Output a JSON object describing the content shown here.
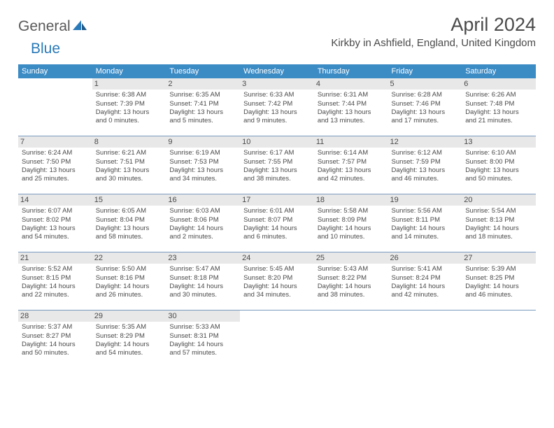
{
  "logo": {
    "part1": "General",
    "part2": "Blue"
  },
  "title": "April 2024",
  "location": "Kirkby in Ashfield, England, United Kingdom",
  "colors": {
    "header_bg": "#3b8bc5",
    "header_fg": "#ffffff",
    "cell_border": "#7a9abf",
    "daynum_bg": "#e8e8e8",
    "text": "#4a4a4a",
    "logo_blue": "#2a7ab9"
  },
  "day_names": [
    "Sunday",
    "Monday",
    "Tuesday",
    "Wednesday",
    "Thursday",
    "Friday",
    "Saturday"
  ],
  "weeks": [
    [
      null,
      {
        "n": "1",
        "sr": "Sunrise: 6:38 AM",
        "ss": "Sunset: 7:39 PM",
        "d1": "Daylight: 13 hours",
        "d2": "and 0 minutes."
      },
      {
        "n": "2",
        "sr": "Sunrise: 6:35 AM",
        "ss": "Sunset: 7:41 PM",
        "d1": "Daylight: 13 hours",
        "d2": "and 5 minutes."
      },
      {
        "n": "3",
        "sr": "Sunrise: 6:33 AM",
        "ss": "Sunset: 7:42 PM",
        "d1": "Daylight: 13 hours",
        "d2": "and 9 minutes."
      },
      {
        "n": "4",
        "sr": "Sunrise: 6:31 AM",
        "ss": "Sunset: 7:44 PM",
        "d1": "Daylight: 13 hours",
        "d2": "and 13 minutes."
      },
      {
        "n": "5",
        "sr": "Sunrise: 6:28 AM",
        "ss": "Sunset: 7:46 PM",
        "d1": "Daylight: 13 hours",
        "d2": "and 17 minutes."
      },
      {
        "n": "6",
        "sr": "Sunrise: 6:26 AM",
        "ss": "Sunset: 7:48 PM",
        "d1": "Daylight: 13 hours",
        "d2": "and 21 minutes."
      }
    ],
    [
      {
        "n": "7",
        "sr": "Sunrise: 6:24 AM",
        "ss": "Sunset: 7:50 PM",
        "d1": "Daylight: 13 hours",
        "d2": "and 25 minutes."
      },
      {
        "n": "8",
        "sr": "Sunrise: 6:21 AM",
        "ss": "Sunset: 7:51 PM",
        "d1": "Daylight: 13 hours",
        "d2": "and 30 minutes."
      },
      {
        "n": "9",
        "sr": "Sunrise: 6:19 AM",
        "ss": "Sunset: 7:53 PM",
        "d1": "Daylight: 13 hours",
        "d2": "and 34 minutes."
      },
      {
        "n": "10",
        "sr": "Sunrise: 6:17 AM",
        "ss": "Sunset: 7:55 PM",
        "d1": "Daylight: 13 hours",
        "d2": "and 38 minutes."
      },
      {
        "n": "11",
        "sr": "Sunrise: 6:14 AM",
        "ss": "Sunset: 7:57 PM",
        "d1": "Daylight: 13 hours",
        "d2": "and 42 minutes."
      },
      {
        "n": "12",
        "sr": "Sunrise: 6:12 AM",
        "ss": "Sunset: 7:59 PM",
        "d1": "Daylight: 13 hours",
        "d2": "and 46 minutes."
      },
      {
        "n": "13",
        "sr": "Sunrise: 6:10 AM",
        "ss": "Sunset: 8:00 PM",
        "d1": "Daylight: 13 hours",
        "d2": "and 50 minutes."
      }
    ],
    [
      {
        "n": "14",
        "sr": "Sunrise: 6:07 AM",
        "ss": "Sunset: 8:02 PM",
        "d1": "Daylight: 13 hours",
        "d2": "and 54 minutes."
      },
      {
        "n": "15",
        "sr": "Sunrise: 6:05 AM",
        "ss": "Sunset: 8:04 PM",
        "d1": "Daylight: 13 hours",
        "d2": "and 58 minutes."
      },
      {
        "n": "16",
        "sr": "Sunrise: 6:03 AM",
        "ss": "Sunset: 8:06 PM",
        "d1": "Daylight: 14 hours",
        "d2": "and 2 minutes."
      },
      {
        "n": "17",
        "sr": "Sunrise: 6:01 AM",
        "ss": "Sunset: 8:07 PM",
        "d1": "Daylight: 14 hours",
        "d2": "and 6 minutes."
      },
      {
        "n": "18",
        "sr": "Sunrise: 5:58 AM",
        "ss": "Sunset: 8:09 PM",
        "d1": "Daylight: 14 hours",
        "d2": "and 10 minutes."
      },
      {
        "n": "19",
        "sr": "Sunrise: 5:56 AM",
        "ss": "Sunset: 8:11 PM",
        "d1": "Daylight: 14 hours",
        "d2": "and 14 minutes."
      },
      {
        "n": "20",
        "sr": "Sunrise: 5:54 AM",
        "ss": "Sunset: 8:13 PM",
        "d1": "Daylight: 14 hours",
        "d2": "and 18 minutes."
      }
    ],
    [
      {
        "n": "21",
        "sr": "Sunrise: 5:52 AM",
        "ss": "Sunset: 8:15 PM",
        "d1": "Daylight: 14 hours",
        "d2": "and 22 minutes."
      },
      {
        "n": "22",
        "sr": "Sunrise: 5:50 AM",
        "ss": "Sunset: 8:16 PM",
        "d1": "Daylight: 14 hours",
        "d2": "and 26 minutes."
      },
      {
        "n": "23",
        "sr": "Sunrise: 5:47 AM",
        "ss": "Sunset: 8:18 PM",
        "d1": "Daylight: 14 hours",
        "d2": "and 30 minutes."
      },
      {
        "n": "24",
        "sr": "Sunrise: 5:45 AM",
        "ss": "Sunset: 8:20 PM",
        "d1": "Daylight: 14 hours",
        "d2": "and 34 minutes."
      },
      {
        "n": "25",
        "sr": "Sunrise: 5:43 AM",
        "ss": "Sunset: 8:22 PM",
        "d1": "Daylight: 14 hours",
        "d2": "and 38 minutes."
      },
      {
        "n": "26",
        "sr": "Sunrise: 5:41 AM",
        "ss": "Sunset: 8:24 PM",
        "d1": "Daylight: 14 hours",
        "d2": "and 42 minutes."
      },
      {
        "n": "27",
        "sr": "Sunrise: 5:39 AM",
        "ss": "Sunset: 8:25 PM",
        "d1": "Daylight: 14 hours",
        "d2": "and 46 minutes."
      }
    ],
    [
      {
        "n": "28",
        "sr": "Sunrise: 5:37 AM",
        "ss": "Sunset: 8:27 PM",
        "d1": "Daylight: 14 hours",
        "d2": "and 50 minutes."
      },
      {
        "n": "29",
        "sr": "Sunrise: 5:35 AM",
        "ss": "Sunset: 8:29 PM",
        "d1": "Daylight: 14 hours",
        "d2": "and 54 minutes."
      },
      {
        "n": "30",
        "sr": "Sunrise: 5:33 AM",
        "ss": "Sunset: 8:31 PM",
        "d1": "Daylight: 14 hours",
        "d2": "and 57 minutes."
      },
      null,
      null,
      null,
      null
    ]
  ]
}
